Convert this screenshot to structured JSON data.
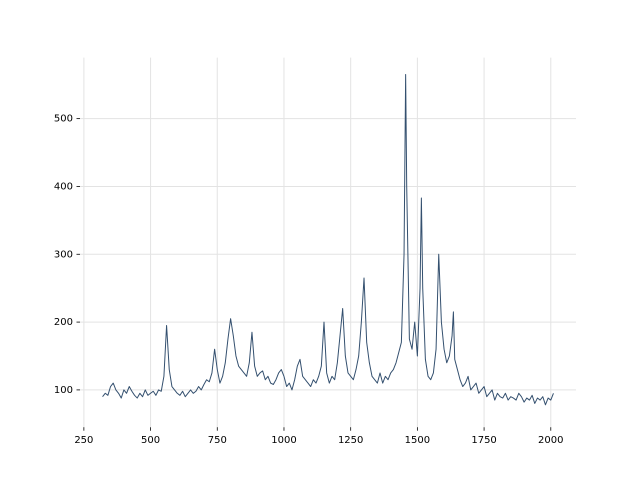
{
  "chart_data": {
    "type": "line",
    "color": "#34506f",
    "grid": true,
    "xlim": [
      235.5,
      2094.5
    ],
    "ylim": [
      45,
      590
    ],
    "xticks": [
      250,
      500,
      750,
      1000,
      1250,
      1500,
      1750,
      2000
    ],
    "yticks": [
      100,
      200,
      300,
      400,
      500
    ],
    "x": [
      320,
      330,
      340,
      350,
      360,
      370,
      380,
      390,
      400,
      410,
      420,
      430,
      440,
      450,
      460,
      470,
      480,
      490,
      500,
      510,
      520,
      530,
      540,
      550,
      560,
      570,
      580,
      590,
      600,
      610,
      620,
      630,
      640,
      650,
      660,
      670,
      680,
      690,
      700,
      710,
      720,
      730,
      740,
      750,
      760,
      770,
      780,
      790,
      800,
      810,
      820,
      830,
      840,
      850,
      860,
      870,
      880,
      890,
      900,
      910,
      920,
      930,
      940,
      950,
      960,
      970,
      980,
      990,
      1000,
      1010,
      1020,
      1030,
      1040,
      1050,
      1060,
      1070,
      1080,
      1090,
      1100,
      1110,
      1120,
      1130,
      1140,
      1150,
      1160,
      1170,
      1180,
      1190,
      1200,
      1210,
      1220,
      1230,
      1240,
      1250,
      1260,
      1270,
      1280,
      1290,
      1300,
      1310,
      1320,
      1330,
      1340,
      1350,
      1360,
      1370,
      1380,
      1390,
      1400,
      1410,
      1420,
      1430,
      1440,
      1450,
      1456,
      1460,
      1470,
      1480,
      1490,
      1500,
      1510,
      1515,
      1520,
      1530,
      1540,
      1550,
      1560,
      1570,
      1580,
      1590,
      1600,
      1610,
      1620,
      1630,
      1635,
      1640,
      1650,
      1660,
      1670,
      1680,
      1690,
      1700,
      1710,
      1720,
      1730,
      1740,
      1750,
      1760,
      1770,
      1780,
      1790,
      1800,
      1810,
      1820,
      1830,
      1840,
      1850,
      1860,
      1870,
      1880,
      1890,
      1900,
      1910,
      1920,
      1930,
      1940,
      1950,
      1960,
      1970,
      1980,
      1990,
      2000,
      2010
    ],
    "values": [
      90,
      95,
      92,
      105,
      110,
      100,
      95,
      88,
      100,
      95,
      105,
      98,
      92,
      88,
      95,
      90,
      100,
      92,
      95,
      98,
      92,
      100,
      98,
      120,
      195,
      130,
      105,
      100,
      95,
      92,
      98,
      90,
      95,
      100,
      95,
      98,
      105,
      100,
      108,
      115,
      112,
      125,
      160,
      130,
      110,
      120,
      140,
      175,
      205,
      180,
      150,
      135,
      130,
      125,
      120,
      140,
      185,
      135,
      120,
      125,
      128,
      115,
      120,
      110,
      108,
      115,
      125,
      130,
      120,
      105,
      110,
      100,
      115,
      135,
      145,
      120,
      115,
      110,
      105,
      115,
      110,
      120,
      135,
      200,
      125,
      110,
      120,
      115,
      140,
      180,
      220,
      150,
      125,
      120,
      115,
      130,
      150,
      200,
      265,
      170,
      140,
      120,
      115,
      110,
      125,
      110,
      120,
      115,
      125,
      130,
      140,
      155,
      170,
      300,
      565,
      400,
      175,
      160,
      200,
      150,
      250,
      383,
      250,
      145,
      120,
      115,
      125,
      160,
      300,
      200,
      160,
      140,
      150,
      180,
      215,
      145,
      130,
      115,
      105,
      110,
      120,
      100,
      105,
      110,
      95,
      100,
      105,
      90,
      95,
      100,
      85,
      95,
      90,
      88,
      95,
      85,
      90,
      88,
      85,
      95,
      90,
      82,
      88,
      85,
      92,
      80,
      88,
      85,
      90,
      78,
      88,
      85,
      95
    ]
  }
}
